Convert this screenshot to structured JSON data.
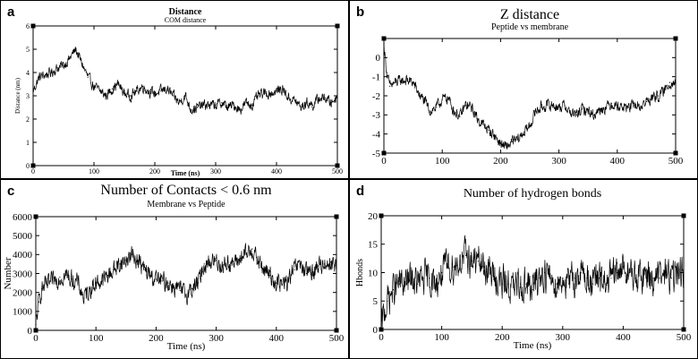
{
  "panels": [
    {
      "letter": "a"
    },
    {
      "letter": "b"
    },
    {
      "letter": "c"
    },
    {
      "letter": "d"
    }
  ],
  "chart_data": [
    {
      "type": "line",
      "title": "Distance",
      "subtitle": "COM distance",
      "xlabel": "Time (ns)",
      "ylabel": "Distance (nm)",
      "xlim": [
        0,
        500
      ],
      "ylim": [
        0,
        6
      ],
      "xticks": [
        0,
        100,
        200,
        300,
        400,
        500
      ],
      "yticks": [
        0,
        1,
        2,
        3,
        4,
        5,
        6
      ],
      "x": [
        0,
        10,
        20,
        30,
        40,
        50,
        60,
        70,
        80,
        90,
        100,
        110,
        120,
        130,
        140,
        150,
        160,
        170,
        180,
        190,
        200,
        210,
        220,
        230,
        240,
        250,
        260,
        270,
        280,
        290,
        300,
        310,
        320,
        330,
        340,
        350,
        360,
        370,
        380,
        390,
        400,
        410,
        420,
        430,
        440,
        450,
        460,
        470,
        480,
        490,
        500
      ],
      "values": [
        3.2,
        3.8,
        3.9,
        4.0,
        4.2,
        4.3,
        4.6,
        5.0,
        4.4,
        3.8,
        3.4,
        3.2,
        3.0,
        3.3,
        3.5,
        3.1,
        3.0,
        3.2,
        3.4,
        3.2,
        3.1,
        3.2,
        3.3,
        3.0,
        2.7,
        3.0,
        2.4,
        2.5,
        2.6,
        2.6,
        2.6,
        2.7,
        2.5,
        2.6,
        2.4,
        2.7,
        2.6,
        3.0,
        3.1,
        3.1,
        3.2,
        3.3,
        2.9,
        2.8,
        2.5,
        2.7,
        2.6,
        2.9,
        2.9,
        2.7,
        3.0
      ],
      "noise": 0.35
    },
    {
      "type": "line",
      "title": "Z distance",
      "subtitle": "Peptide vs membrane",
      "xlabel": "",
      "ylabel": "",
      "xlim": [
        0,
        500
      ],
      "ylim": [
        -5,
        1
      ],
      "xticks": [
        0,
        100,
        200,
        300,
        400,
        500
      ],
      "yticks": [
        -5,
        -4,
        -3,
        -2,
        -1,
        0
      ],
      "x": [
        0,
        5,
        10,
        20,
        30,
        40,
        50,
        60,
        70,
        80,
        90,
        100,
        110,
        120,
        130,
        140,
        150,
        160,
        170,
        180,
        190,
        200,
        210,
        220,
        230,
        240,
        250,
        260,
        270,
        280,
        290,
        300,
        310,
        320,
        330,
        340,
        350,
        360,
        370,
        380,
        390,
        400,
        410,
        420,
        430,
        440,
        450,
        460,
        470,
        480,
        490,
        500
      ],
      "values": [
        0.7,
        -0.8,
        -1.5,
        -1.3,
        -1.2,
        -1.2,
        -1.3,
        -1.9,
        -2.3,
        -2.8,
        -2.6,
        -2.2,
        -2.1,
        -2.8,
        -3.1,
        -2.5,
        -2.6,
        -3.2,
        -3.5,
        -3.8,
        -4.1,
        -4.5,
        -4.7,
        -4.4,
        -4.3,
        -3.9,
        -3.6,
        -2.8,
        -2.6,
        -2.5,
        -2.5,
        -2.6,
        -2.5,
        -2.9,
        -3.0,
        -2.7,
        -2.8,
        -3.0,
        -2.7,
        -2.6,
        -2.4,
        -2.5,
        -2.6,
        -2.6,
        -2.5,
        -2.6,
        -2.3,
        -2.1,
        -2.0,
        -1.8,
        -1.3,
        -1.3
      ],
      "noise": 0.45
    },
    {
      "type": "line",
      "title": "Number of Contacts < 0.6 nm",
      "subtitle": "Membrane vs Peptide",
      "xlabel": "Time (ns)",
      "ylabel": "Number",
      "xlim": [
        0,
        500
      ],
      "ylim": [
        0,
        6000
      ],
      "xticks": [
        0,
        100,
        200,
        300,
        400,
        500
      ],
      "yticks": [
        0,
        1000,
        2000,
        3000,
        4000,
        5000,
        6000
      ],
      "x": [
        0,
        5,
        10,
        20,
        30,
        40,
        50,
        60,
        70,
        80,
        90,
        100,
        110,
        120,
        130,
        140,
        150,
        160,
        170,
        180,
        190,
        200,
        210,
        220,
        230,
        240,
        250,
        260,
        270,
        280,
        290,
        300,
        310,
        320,
        330,
        340,
        350,
        360,
        370,
        380,
        390,
        400,
        410,
        420,
        430,
        440,
        450,
        460,
        470,
        480,
        490,
        500
      ],
      "values": [
        300,
        1500,
        2200,
        2400,
        2600,
        2800,
        2900,
        2700,
        2500,
        1700,
        2200,
        2500,
        2600,
        2900,
        3200,
        3500,
        3700,
        4000,
        3700,
        3200,
        2900,
        2700,
        2600,
        2500,
        2300,
        2100,
        1900,
        2200,
        2500,
        3500,
        3600,
        3700,
        3400,
        3600,
        3500,
        3800,
        4000,
        4300,
        3600,
        3200,
        2900,
        2500,
        2400,
        2600,
        3200,
        3500,
        3000,
        3100,
        3400,
        3500,
        3600,
        3400
      ],
      "noise": 750
    },
    {
      "type": "line",
      "title": "Number of hydrogen bonds",
      "subtitle": "",
      "xlabel": "Time (ns)",
      "ylabel": "Hbonds",
      "xlim": [
        0,
        500
      ],
      "ylim": [
        0,
        20
      ],
      "xticks": [
        0,
        100,
        200,
        300,
        400,
        500
      ],
      "yticks": [
        0,
        5,
        10,
        15,
        20
      ],
      "x": [
        0,
        5,
        10,
        20,
        30,
        40,
        50,
        60,
        70,
        80,
        90,
        100,
        110,
        120,
        130,
        140,
        150,
        160,
        170,
        180,
        190,
        200,
        210,
        220,
        230,
        240,
        250,
        260,
        270,
        280,
        290,
        300,
        310,
        320,
        330,
        340,
        350,
        360,
        370,
        380,
        390,
        400,
        410,
        420,
        430,
        440,
        450,
        460,
        470,
        480,
        490,
        500
      ],
      "values": [
        0,
        3,
        5,
        7,
        8,
        8,
        9,
        8,
        9,
        9,
        8,
        10,
        11,
        11,
        12,
        13,
        12,
        12,
        11,
        10,
        9,
        8,
        8,
        7,
        8,
        8,
        7,
        9,
        10,
        9,
        8,
        9,
        8,
        9,
        10,
        9,
        8,
        9,
        8,
        9,
        10,
        11,
        10,
        9,
        9,
        10,
        9,
        9,
        10,
        9,
        10,
        10
      ],
      "noise": 4.5
    }
  ]
}
